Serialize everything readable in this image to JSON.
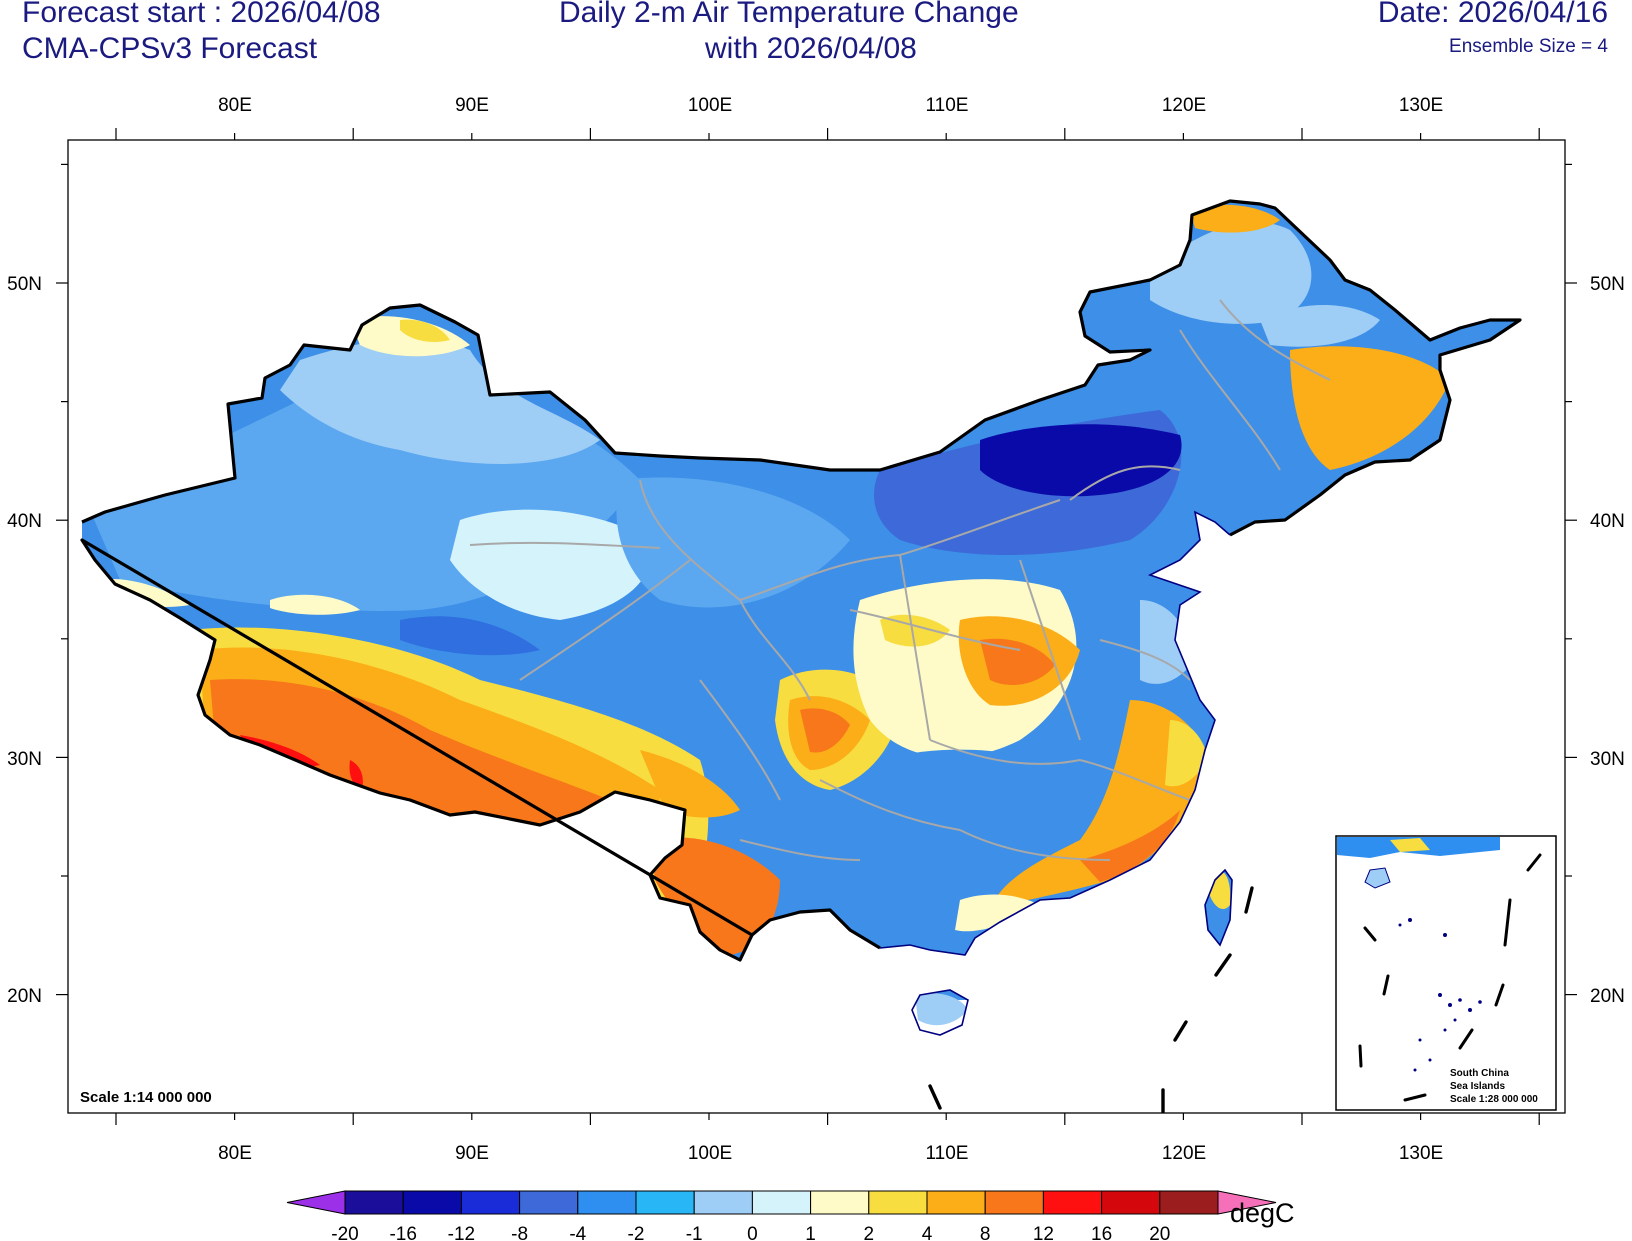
{
  "header": {
    "forecast_start": "Forecast start : 2026/04/08",
    "model": "CMA-CPSv3 Forecast",
    "title_line1": "Daily 2-m Air Temperature Change",
    "title_line2": "with 2026/04/08",
    "date": "Date: 2026/04/16",
    "ensemble": "Ensemble Size = 4"
  },
  "axes": {
    "lon_labels": [
      "80E",
      "90E",
      "100E",
      "110E",
      "120E",
      "130E"
    ],
    "lat_labels": [
      "50N",
      "40N",
      "30N",
      "20N"
    ]
  },
  "map": {
    "scale": "Scale 1:14 000 000",
    "inset_title": [
      "South China",
      "Sea Islands"
    ],
    "inset_scale": "Scale 1:28 000 000"
  },
  "colorbar": {
    "unit": "degC",
    "ticks": [
      "-20",
      "-16",
      "-12",
      "-8",
      "-4",
      "-2",
      "-1",
      "0",
      "1",
      "2",
      "4",
      "8",
      "12",
      "16",
      "20"
    ],
    "colors": [
      "#1a0e9a",
      "#0a0aa8",
      "#1a2bd8",
      "#3d6ad8",
      "#2f8ff0",
      "#29b6f6",
      "#9ecdf5",
      "#d5f3fb",
      "#fffbc8",
      "#f8dd40",
      "#fbae17",
      "#f8771b",
      "#fe1010",
      "#d4070d",
      "#9c1d1d",
      "#f070b0"
    ],
    "end_low": "#9b30e8",
    "end_high": "#f570b8"
  }
}
